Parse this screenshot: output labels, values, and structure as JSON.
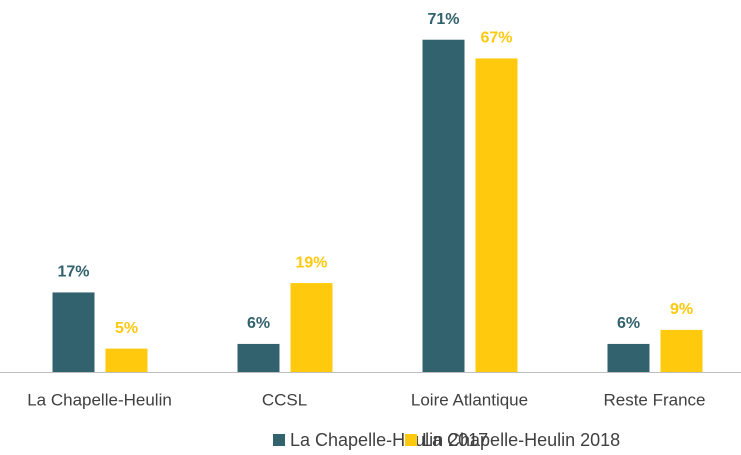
{
  "chart_data": {
    "type": "bar",
    "categories": [
      "La Chapelle-Heulin",
      "CCSL",
      "Loire Atlantique",
      "Reste France"
    ],
    "series": [
      {
        "name": "La Chapelle-Heulin 2017",
        "color": "#33626f",
        "values": [
          17,
          6,
          71,
          6
        ],
        "value_labels": [
          "17%",
          "6%",
          "71%",
          "6%"
        ]
      },
      {
        "name": "La Chapelle-Heulin 2018",
        "color": "#ffc90e",
        "values": [
          5,
          19,
          67,
          9
        ],
        "value_labels": [
          "5%",
          "19%",
          "67%",
          "9%"
        ]
      }
    ]
  }
}
